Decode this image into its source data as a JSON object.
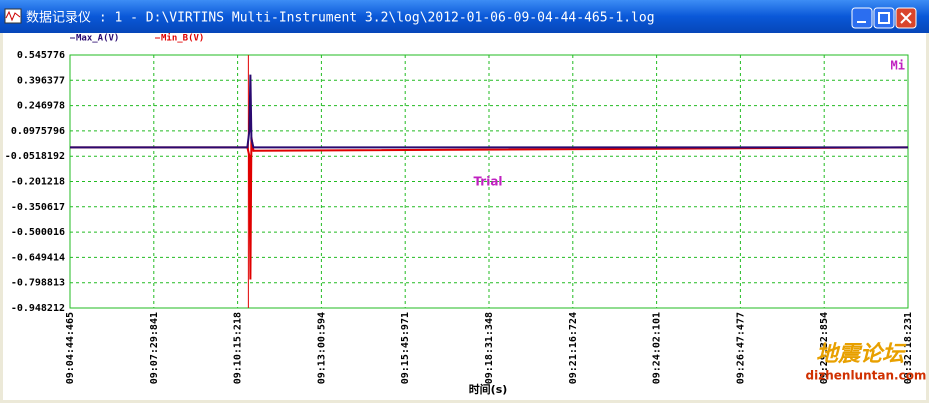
{
  "window": {
    "title": "数据记录仪 : 1 - D:\\VIRTINS Multi-Instrument 3.2\\log\\2012-01-06-09-04-44-465-1.log"
  },
  "chart_data": {
    "type": "line",
    "x_label": "时间(s)",
    "annotations": [
      "Trial",
      "Mi"
    ],
    "x": [
      0,
      350,
      354,
      356,
      358,
      362,
      1653.766
    ],
    "series": [
      {
        "name": "Min_B(V)",
        "color": "#e00000",
        "values": [
          0,
          0,
          -0.05,
          -0.78,
          0.06,
          -0.02,
          0
        ]
      },
      {
        "name": "Max_A(V)",
        "color": "#2a0a70",
        "values": [
          0,
          0,
          0.1,
          0.43,
          0.05,
          0,
          0
        ]
      }
    ],
    "cursor_x": 352,
    "xlim": [
      0,
      1653.766
    ],
    "xticks": [
      {
        "value": 0,
        "label": "09:04:44:465"
      },
      {
        "value": 165.377,
        "label": "09:07:29:841"
      },
      {
        "value": 330.753,
        "label": "09:10:15:218"
      },
      {
        "value": 496.129,
        "label": "09:13:00:594"
      },
      {
        "value": 661.506,
        "label": "09:15:45:971"
      },
      {
        "value": 826.883,
        "label": "09:18:31:348"
      },
      {
        "value": 992.259,
        "label": "09:21:16:724"
      },
      {
        "value": 1157.636,
        "label": "09:24:02:101"
      },
      {
        "value": 1323.012,
        "label": "09:26:47:477"
      },
      {
        "value": 1488.389,
        "label": "09:29:32:854"
      },
      {
        "value": 1653.766,
        "label": "09:32:18:231"
      }
    ],
    "ylim": [
      -0.948212,
      0.545776
    ],
    "yticks": [
      0.545776,
      0.396377,
      0.246978,
      0.0975796,
      -0.0518192,
      -0.201218,
      -0.350617,
      -0.500016,
      -0.649414,
      -0.798813,
      -0.948212
    ],
    "grid": true
  },
  "watermark": {
    "text": "地震论坛",
    "url": "dizhenluntan.com"
  }
}
